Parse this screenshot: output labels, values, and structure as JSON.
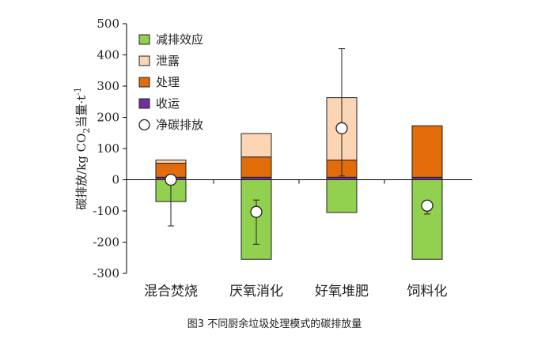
{
  "chart_data": {
    "type": "bar",
    "stacked": true,
    "categories": [
      "混合焚烧",
      "厌氧消化",
      "好氧堆肥",
      "饲料化"
    ],
    "ylabel": {
      "main": "碳排放/kg CO",
      "sub": "2",
      "mid": "当量·t",
      "sup": "-1"
    },
    "ylim": [
      -300,
      500
    ],
    "yticks": [
      500,
      400,
      300,
      200,
      100,
      0,
      -100,
      -200,
      -300
    ],
    "grid": false,
    "legend_position": "top-left",
    "series": [
      {
        "name": "减排效应",
        "color": "#92d050",
        "values": [
          -70,
          -255,
          -105,
          -255
        ]
      },
      {
        "name": "收运",
        "color": "#7030a0",
        "values": [
          8,
          8,
          8,
          8
        ]
      },
      {
        "name": "处理",
        "color": "#e26b0a",
        "values": [
          45,
          65,
          55,
          165
        ]
      },
      {
        "name": "泄露",
        "color": "#fcd5b4",
        "values": [
          10,
          75,
          200,
          0
        ]
      }
    ],
    "net": {
      "name": "净碳排放",
      "values": [
        0,
        -103,
        165,
        -83
      ],
      "err_low": [
        -148,
        -207,
        12,
        -110
      ],
      "err_high": [
        5,
        -65,
        420,
        -70
      ]
    },
    "caption": "图3 不同厨余垃圾处理模式的碳排放量"
  }
}
